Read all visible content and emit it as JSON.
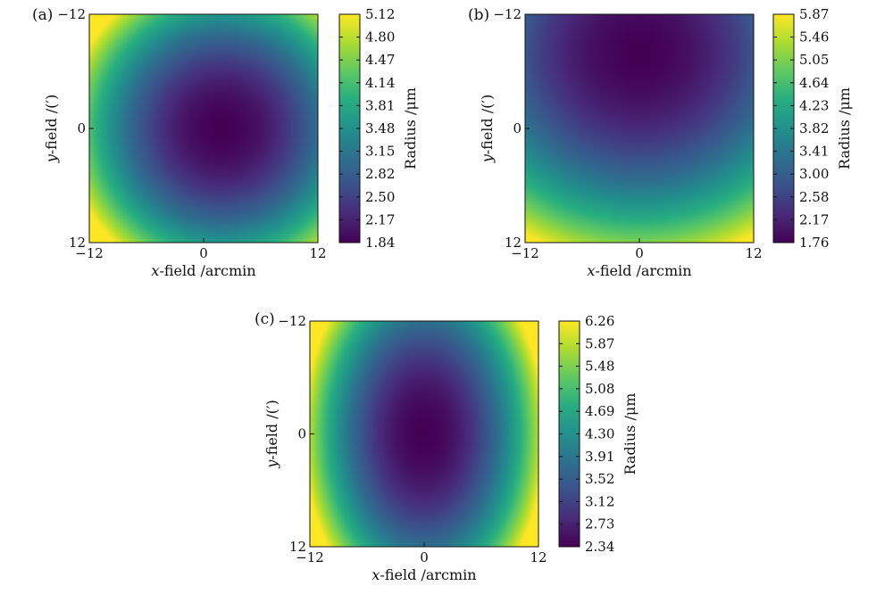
{
  "chart_data": [
    {
      "type": "heatmap",
      "panel_label": "(a)",
      "xlabel": "-field /arcmin",
      "xlabel_italic": "x",
      "ylabel": "-field /(′)",
      "ylabel_italic": "y",
      "x_ticks": [
        "−12",
        "0",
        "12"
      ],
      "y_ticks": [
        "−12",
        "0",
        "12"
      ],
      "xlim": [
        -12,
        12
      ],
      "ylim": [
        -12,
        12
      ],
      "y_axis_direction": "top-to-bottom increasing",
      "colorbar": {
        "label": "Radius /μm",
        "min": 1.84,
        "max": 5.12,
        "ticks": [
          "5.12",
          "4.80",
          "4.47",
          "4.14",
          "3.81",
          "3.48",
          "3.15",
          "2.82",
          "2.50",
          "2.17",
          "1.84"
        ]
      },
      "colormap": "viridis",
      "field_model": {
        "description": "radially symmetric, minimum near center",
        "center_x": 2,
        "center_y": 0,
        "min_value": 1.84,
        "max_value": 5.12
      }
    },
    {
      "type": "heatmap",
      "panel_label": "(b)",
      "xlabel": "-field /arcmin",
      "xlabel_italic": "x",
      "ylabel": "-field /(′)",
      "ylabel_italic": "y",
      "x_ticks": [
        "−12",
        "0",
        "12"
      ],
      "y_ticks": [
        "−12",
        "0",
        "12"
      ],
      "xlim": [
        -12,
        12
      ],
      "ylim": [
        -12,
        12
      ],
      "y_axis_direction": "top-to-bottom increasing",
      "colorbar": {
        "label": "Radius /μm",
        "min": 1.76,
        "max": 5.87,
        "ticks": [
          "5.87",
          "5.46",
          "5.05",
          "4.64",
          "4.23",
          "3.82",
          "3.41",
          "3.00",
          "2.58",
          "2.17",
          "1.76"
        ]
      },
      "colormap": "viridis",
      "field_model": {
        "description": "minimum near top-center, increasing toward bottom",
        "center_x": 0,
        "center_y": -8,
        "min_value": 1.76,
        "max_value": 5.87
      }
    },
    {
      "type": "heatmap",
      "panel_label": "(c)",
      "xlabel": "-field /arcmin",
      "xlabel_italic": "x",
      "ylabel": "-field /(′)",
      "ylabel_italic": "y",
      "x_ticks": [
        "−12",
        "0",
        "12"
      ],
      "y_ticks": [
        "−12",
        "0",
        "12"
      ],
      "xlim": [
        -12,
        12
      ],
      "ylim": [
        -12,
        12
      ],
      "y_axis_direction": "top-to-bottom increasing",
      "colorbar": {
        "label": "Radius /μm",
        "min": 2.34,
        "max": 6.26,
        "ticks": [
          "6.26",
          "5.87",
          "5.48",
          "5.08",
          "4.69",
          "4.30",
          "3.91",
          "3.52",
          "3.12",
          "2.73",
          "2.34"
        ]
      },
      "colormap": "viridis",
      "field_model": {
        "description": "elliptical, minimum at center, elongated along y",
        "center_x": 0,
        "center_y": 0,
        "min_value": 2.34,
        "max_value": 6.26
      }
    }
  ]
}
